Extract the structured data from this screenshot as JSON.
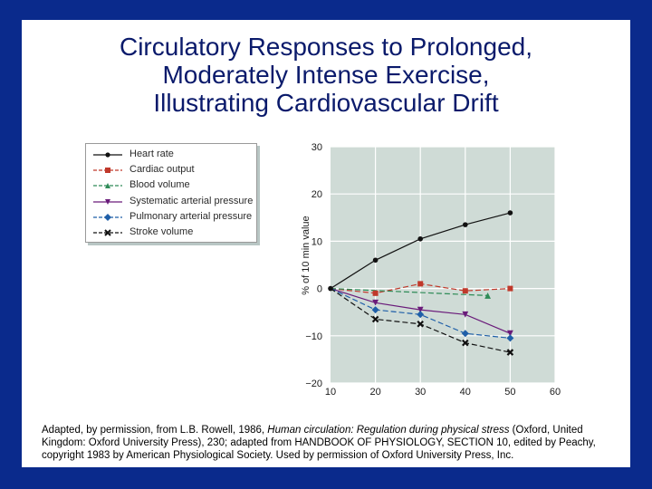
{
  "title": {
    "line1": "Circulatory Responses to Prolonged,",
    "line2": "Moderately Intense Exercise,",
    "line3": "Illustrating Cardiovascular Drift"
  },
  "colors": {
    "background": "#0a2a8c",
    "plot_bg": "#cfdbd6",
    "title": "#0a1a6b"
  },
  "chart_data": {
    "type": "line",
    "xlabel": "",
    "ylabel": "% of 10 min value",
    "xlim": [
      10,
      60
    ],
    "ylim": [
      -20,
      30
    ],
    "x_ticks": [
      "10",
      "20",
      "30",
      "40",
      "50",
      "60"
    ],
    "y_ticks": [
      "30",
      "20",
      "10",
      "0",
      "−10",
      "−20"
    ],
    "grid": true,
    "legend_position": "top-left",
    "series": [
      {
        "name": "Heart rate",
        "color": "#111111",
        "marker": "circle",
        "dashed": false,
        "x": [
          10,
          20,
          30,
          40,
          50
        ],
        "y": [
          0,
          6,
          10.5,
          13.5,
          16
        ]
      },
      {
        "name": "Cardiac output",
        "color": "#c0392b",
        "marker": "square",
        "dashed": true,
        "x": [
          10,
          20,
          30,
          40,
          50
        ],
        "y": [
          0,
          -1,
          1,
          -0.5,
          0
        ]
      },
      {
        "name": "Blood volume",
        "color": "#2e8b57",
        "marker": "triangle-up",
        "dashed": true,
        "x": [
          10,
          45
        ],
        "y": [
          0,
          -1.5
        ]
      },
      {
        "name": "Systematic arterial pressure",
        "color": "#6a1b7a",
        "marker": "triangle-down",
        "dashed": false,
        "x": [
          10,
          20,
          30,
          40,
          50
        ],
        "y": [
          0,
          -3,
          -4.5,
          -5.5,
          -9.5
        ]
      },
      {
        "name": "Pulmonary arterial pressure",
        "color": "#1f5fa8",
        "marker": "diamond",
        "dashed": true,
        "x": [
          10,
          20,
          30,
          40,
          50
        ],
        "y": [
          0,
          -4.5,
          -5.5,
          -9.5,
          -10.5
        ]
      },
      {
        "name": "Stroke volume",
        "color": "#111111",
        "marker": "x",
        "dashed": true,
        "x": [
          10,
          20,
          30,
          40,
          50
        ],
        "y": [
          0,
          -6.5,
          -7.5,
          -11.5,
          -13.5
        ]
      }
    ]
  },
  "caption": {
    "part1": "Adapted, by permission, from L.B. Rowell, 1986, ",
    "italic": "Human circulation: Regulation during physical stress",
    "part2": " (Oxford, United Kingdom: Oxford University Press), 230; adapted from HANDBOOK OF PHYSIOLOGY, SECTION 10, edited by Peachy, copyright 1983 by American Physiological Society. Used by permission of Oxford University Press, Inc."
  }
}
